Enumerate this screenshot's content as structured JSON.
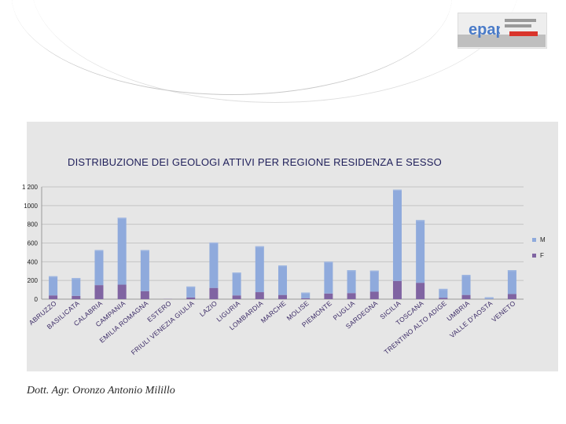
{
  "logo": {
    "text": "epap"
  },
  "colors": {
    "male": "#8faadc",
    "female": "#8064a2",
    "male_top": "#9fb6e0"
  },
  "chart_data": {
    "type": "bar",
    "stacked": true,
    "title": "DISTRIBUZIONE DEI GEOLOGI ATTIVI PER REGIONE RESIDENZA E SESSO",
    "ylim": [
      0,
      1200
    ],
    "yticks": [
      0,
      200,
      400,
      600,
      800,
      1000,
      1200
    ],
    "ytick_labels": [
      "0",
      "200",
      "400",
      "600",
      "800",
      "1000",
      "1 200"
    ],
    "categories": [
      "ABRUZZO",
      "BASILICATA",
      "CALABRIA",
      "CAMPANIA",
      "EMILIA ROMAGNA",
      "ESTERO",
      "FRIULI VENEZIA GIULIA",
      "LAZIO",
      "LIGURIA",
      "LOMBARDIA",
      "MARCHE",
      "MOLISE",
      "PIEMONTE",
      "PUGLIA",
      "SARDEGNA",
      "SICILIA",
      "TOSCANA",
      "TRENTINO ALTO ADIGE",
      "UMBRIA",
      "VALLE D'AOSTA",
      "VENETO"
    ],
    "series": [
      {
        "name": "F",
        "values": [
          40,
          35,
          150,
          155,
          85,
          2,
          18,
          120,
          40,
          75,
          45,
          10,
          60,
          65,
          80,
          195,
          175,
          15,
          45,
          2,
          55
        ]
      },
      {
        "name": "M",
        "values": [
          205,
          190,
          375,
          715,
          440,
          0,
          117,
          485,
          245,
          490,
          315,
          60,
          340,
          245,
          225,
          975,
          670,
          95,
          215,
          18,
          255
        ]
      }
    ],
    "legend": [
      "M",
      "F"
    ],
    "legend_position": "right"
  },
  "footer": {
    "author": "Dott. Agr. Oronzo Antonio Milillo"
  }
}
